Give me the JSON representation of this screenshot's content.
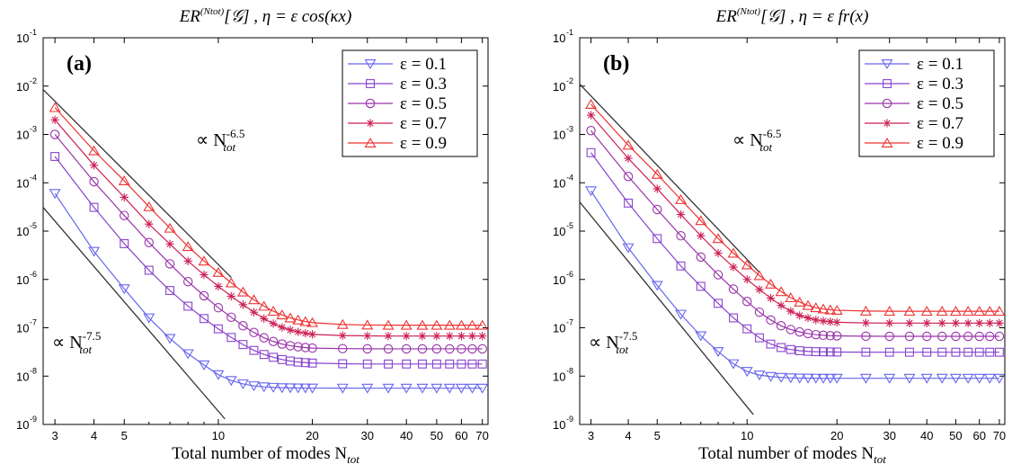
{
  "colors": {
    "s1": "#6666ee",
    "s2": "#8844cc",
    "s3": "#9933aa",
    "s4": "#cc2255",
    "s5": "#ee3333",
    "ref": "#333333"
  },
  "chart_data": [
    {
      "type": "line",
      "panel": "(a)",
      "title": "ER^(N_tot)[𝒢] ,  η = ε cos(κ x)",
      "title_parts": [
        "ER",
        "(Ntot)",
        "[𝒢] ,  η = ε cos(κx)"
      ],
      "xlabel": "Total number of modes N_tot",
      "xlabel_parts": [
        "Total number of modes N",
        "tot"
      ],
      "xscale": "log",
      "yscale": "log",
      "xlim": [
        2.75,
        73
      ],
      "ylim": [
        1e-09,
        0.1
      ],
      "xticks": [
        3,
        4,
        5,
        10,
        20,
        30,
        40,
        50,
        60,
        70
      ],
      "yticks": [
        "10^-1",
        "10^-2",
        "10^-3",
        "10^-4",
        "10^-5",
        "10^-6",
        "10^-7",
        "10^-8",
        "10^-9"
      ],
      "legend_position": "top-right",
      "grid": false,
      "x": [
        3,
        4,
        5,
        6,
        7,
        8,
        9,
        10,
        11,
        12,
        13,
        14,
        15,
        16,
        17,
        18,
        19,
        20,
        25,
        30,
        35,
        40,
        45,
        50,
        55,
        60,
        65,
        70
      ],
      "series": [
        {
          "name": "ε = 0.1",
          "marker": "triangle-down",
          "color_key": "s1",
          "values": [
            6e-05,
            3.8e-06,
            6.4e-07,
            1.6e-07,
            6e-08,
            2.9e-08,
            1.7e-08,
            1.07e-08,
            8.1e-09,
            6.9e-09,
            6.3e-09,
            6e-09,
            5.85e-09,
            5.75e-09,
            5.7e-09,
            5.68e-09,
            5.66e-09,
            5.65e-09,
            5.63e-09,
            5.62e-09,
            5.62e-09,
            5.62e-09,
            5.62e-09,
            5.62e-09,
            5.62e-09,
            5.62e-09,
            5.62e-09,
            5.62e-09
          ]
        },
        {
          "name": "ε = 0.3",
          "marker": "square",
          "color_key": "s2",
          "values": [
            0.00035,
            3.1e-05,
            5.5e-06,
            1.55e-06,
            5.9e-07,
            2.8e-07,
            1.55e-07,
            9.5e-08,
            6.3e-08,
            4.5e-08,
            3.4e-08,
            2.8e-08,
            2.45e-08,
            2.2e-08,
            2.05e-08,
            1.95e-08,
            1.9e-08,
            1.86e-08,
            1.8e-08,
            1.78e-08,
            1.78e-08,
            1.78e-08,
            1.78e-08,
            1.78e-08,
            1.78e-08,
            1.78e-08,
            1.78e-08,
            1.78e-08
          ]
        },
        {
          "name": "ε = 0.5",
          "marker": "circle",
          "color_key": "s3",
          "values": [
            0.001,
            0.000105,
            2.1e-05,
            5.8e-06,
            2.1e-06,
            9e-07,
            4.6e-07,
            2.6e-07,
            1.65e-07,
            1.1e-07,
            8e-08,
            6.2e-08,
            5.2e-08,
            4.6e-08,
            4.25e-08,
            4.05e-08,
            3.9e-08,
            3.8e-08,
            3.7e-08,
            3.67e-08,
            3.66e-08,
            3.66e-08,
            3.66e-08,
            3.66e-08,
            3.66e-08,
            3.66e-08,
            3.66e-08,
            3.66e-08
          ]
        },
        {
          "name": "ε = 0.7",
          "marker": "star",
          "color_key": "s4",
          "values": [
            0.002,
            0.00023,
            5e-05,
            1.4e-05,
            5.4e-06,
            2.4e-06,
            1.25e-06,
            7.2e-07,
            4.5e-07,
            3e-07,
            2.1e-07,
            1.55e-07,
            1.22e-07,
            1.02e-07,
            9e-08,
            8.2e-08,
            7.7e-08,
            7.3e-08,
            6.9e-08,
            6.8e-08,
            6.75e-08,
            6.75e-08,
            6.75e-08,
            6.75e-08,
            6.75e-08,
            6.75e-08,
            6.75e-08,
            6.75e-08
          ]
        },
        {
          "name": "ε = 0.9",
          "marker": "triangle-up",
          "color_key": "s5",
          "values": [
            0.0036,
            0.00046,
            0.00011,
            3.2e-05,
            1.15e-05,
            4.8e-06,
            2.4e-06,
            1.4e-06,
            8.5e-07,
            5.5e-07,
            3.8e-07,
            2.8e-07,
            2.2e-07,
            1.85e-07,
            1.6e-07,
            1.45e-07,
            1.35e-07,
            1.28e-07,
            1.17e-07,
            1.14e-07,
            1.13e-07,
            1.13e-07,
            1.13e-07,
            1.13e-07,
            1.13e-07,
            1.13e-07,
            1.13e-07,
            1.13e-07
          ]
        }
      ],
      "reference_lines": [
        {
          "label_main": "∝ N",
          "label_sub": "tot",
          "label_sup": "-6.5",
          "x": [
            2.75,
            11
          ],
          "y": [
            0.0085,
            1.1e-06
          ]
        },
        {
          "label_main": "∝ N",
          "label_sub": "tot",
          "label_sup": "-7.5",
          "x": [
            2.75,
            10.5
          ],
          "y": [
            3.1e-05,
            1.3e-09
          ]
        }
      ]
    },
    {
      "type": "line",
      "panel": "(b)",
      "title": "ER^(N_tot)[𝒢] ,  η = ε f_r(x)",
      "title_parts": [
        "ER",
        "(Ntot)",
        "[𝒢] ,  η = ε fr(x)"
      ],
      "xlabel": "Total number of modes N_tot",
      "xlabel_parts": [
        "Total number of modes N",
        "tot"
      ],
      "xscale": "log",
      "yscale": "log",
      "xlim": [
        2.75,
        73
      ],
      "ylim": [
        1e-09,
        0.1
      ],
      "xticks": [
        3,
        4,
        5,
        10,
        20,
        30,
        40,
        50,
        60,
        70
      ],
      "yticks": [
        "10^-1",
        "10^-2",
        "10^-3",
        "10^-4",
        "10^-5",
        "10^-6",
        "10^-7",
        "10^-8",
        "10^-9"
      ],
      "legend_position": "top-right",
      "grid": false,
      "x": [
        3,
        4,
        5,
        6,
        7,
        8,
        9,
        10,
        11,
        12,
        13,
        14,
        15,
        16,
        17,
        18,
        19,
        20,
        25,
        30,
        35,
        40,
        45,
        50,
        55,
        60,
        65,
        70
      ],
      "series": [
        {
          "name": "ε = 0.1",
          "marker": "triangle-down",
          "color_key": "s1",
          "values": [
            6.8e-05,
            4.5e-06,
            7.5e-07,
            1.9e-07,
            6.8e-08,
            3.2e-08,
            1.8e-08,
            1.25e-08,
            1.05e-08,
            9.8e-09,
            9.4e-09,
            9.2e-09,
            9.1e-09,
            9.05e-09,
            9.02e-09,
            9e-09,
            9e-09,
            9e-09,
            9e-09,
            9e-09,
            9e-09,
            9e-09,
            9e-09,
            9e-09,
            9e-09,
            9e-09,
            9e-09,
            9e-09
          ]
        },
        {
          "name": "ε = 0.3",
          "marker": "square",
          "color_key": "s2",
          "values": [
            0.00042,
            3.8e-05,
            7e-06,
            1.9e-06,
            7.2e-07,
            3.2e-07,
            1.6e-07,
            9.5e-08,
            6.2e-08,
            4.6e-08,
            3.9e-08,
            3.55e-08,
            3.35e-08,
            3.25e-08,
            3.2e-08,
            3.18e-08,
            3.16e-08,
            3.15e-08,
            3.13e-08,
            3.12e-08,
            3.12e-08,
            3.12e-08,
            3.12e-08,
            3.12e-08,
            3.12e-08,
            3.12e-08,
            3.12e-08,
            3.12e-08
          ]
        },
        {
          "name": "ε = 0.5",
          "marker": "circle",
          "color_key": "s3",
          "values": [
            0.0012,
            0.000135,
            2.8e-05,
            8e-06,
            2.9e-06,
            1.25e-06,
            6.3e-07,
            3.5e-07,
            2.1e-07,
            1.45e-07,
            1.1e-07,
            9.2e-08,
            8.2e-08,
            7.6e-08,
            7.2e-08,
            7e-08,
            6.85e-08,
            6.8e-08,
            6.7e-08,
            6.66e-08,
            6.65e-08,
            6.65e-08,
            6.65e-08,
            6.65e-08,
            6.65e-08,
            6.65e-08,
            6.65e-08,
            6.65e-08
          ]
        },
        {
          "name": "ε = 0.7",
          "marker": "star",
          "color_key": "s4",
          "values": [
            0.0025,
            0.00032,
            7.5e-05,
            2.2e-05,
            8e-06,
            3.5e-06,
            1.8e-06,
            1e-06,
            6.2e-07,
            4.1e-07,
            2.9e-07,
            2.2e-07,
            1.8e-07,
            1.6e-07,
            1.45e-07,
            1.38e-07,
            1.33e-07,
            1.3e-07,
            1.26e-07,
            1.25e-07,
            1.25e-07,
            1.25e-07,
            1.25e-07,
            1.25e-07,
            1.25e-07,
            1.25e-07,
            1.25e-07,
            1.25e-07
          ]
        },
        {
          "name": "ε = 0.9",
          "marker": "triangle-up",
          "color_key": "s5",
          "values": [
            0.0042,
            0.0006,
            0.00015,
            4.5e-05,
            1.65e-05,
            7e-06,
            3.5e-06,
            2e-06,
            1.2e-06,
            8e-07,
            5.6e-07,
            4.2e-07,
            3.4e-07,
            2.9e-07,
            2.6e-07,
            2.45e-07,
            2.35e-07,
            2.3e-07,
            2.22e-07,
            2.2e-07,
            2.2e-07,
            2.2e-07,
            2.2e-07,
            2.2e-07,
            2.2e-07,
            2.2e-07,
            2.2e-07,
            2.2e-07
          ]
        }
      ],
      "reference_lines": [
        {
          "label_main": "∝ N",
          "label_sub": "tot",
          "label_sup": "-6.5",
          "x": [
            2.75,
            11
          ],
          "y": [
            0.011,
            1.4e-06
          ]
        },
        {
          "label_main": "∝ N",
          "label_sub": "tot",
          "label_sup": "-7.5",
          "x": [
            2.75,
            10.5
          ],
          "y": [
            4e-05,
            1.6e-09
          ]
        }
      ]
    }
  ]
}
